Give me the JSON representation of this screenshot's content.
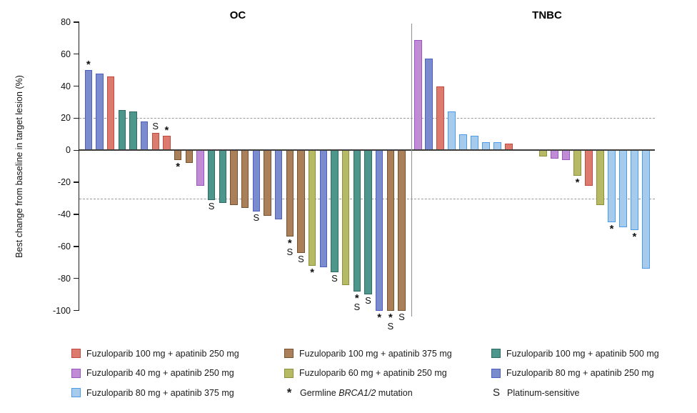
{
  "figure_title": "",
  "colors": {
    "red": {
      "fill": "#DC7A6E",
      "edge": "#C04A40"
    },
    "brown": {
      "fill": "#A9805A",
      "edge": "#77522E"
    },
    "teal": {
      "fill": "#4D968C",
      "edge": "#2F6B62"
    },
    "purple": {
      "fill": "#C08CD5",
      "edge": "#9C55C0"
    },
    "olive": {
      "fill": "#B6BA65",
      "edge": "#8C9038"
    },
    "slate": {
      "fill": "#7B8CCE",
      "edge": "#4F5FC0"
    },
    "sky": {
      "fill": "#A6CBEC",
      "edge": "#4C9BE8"
    }
  },
  "chart_data": {
    "type": "bar",
    "title": "",
    "xlabel": "",
    "ylabel": "Best change from baseline in target lesion (%)",
    "ylim": [
      -100,
      80
    ],
    "y_ticks": [
      80,
      60,
      40,
      20,
      0,
      -20,
      -40,
      -60,
      -80,
      -100
    ],
    "reference_lines": [
      20,
      -30
    ],
    "marker_meanings": {
      "*": "Germline BRCA1/2 mutation",
      "S": "Platinum-sensitive"
    },
    "panels": [
      {
        "title": "OC",
        "bars": [
          {
            "value": 50,
            "color": "slate",
            "markers": [
              "*"
            ]
          },
          {
            "value": 48,
            "color": "slate"
          },
          {
            "value": 46,
            "color": "red"
          },
          {
            "value": 25,
            "color": "teal"
          },
          {
            "value": 24,
            "color": "teal"
          },
          {
            "value": 18,
            "color": "slate"
          },
          {
            "value": 11,
            "color": "red",
            "markers": [
              "S"
            ]
          },
          {
            "value": 9,
            "color": "red",
            "markers": [
              "*"
            ]
          },
          {
            "value": -6,
            "color": "brown",
            "markers": [
              "*"
            ]
          },
          {
            "value": -8,
            "color": "brown"
          },
          {
            "value": -22,
            "color": "purple"
          },
          {
            "value": -31,
            "color": "teal",
            "markers": [
              "S"
            ]
          },
          {
            "value": -33,
            "color": "teal"
          },
          {
            "value": -34,
            "color": "brown"
          },
          {
            "value": -36,
            "color": "brown"
          },
          {
            "value": -38,
            "color": "slate",
            "markers": [
              "S"
            ]
          },
          {
            "value": -41,
            "color": "brown"
          },
          {
            "value": -43,
            "color": "slate"
          },
          {
            "value": -54,
            "color": "brown",
            "markers": [
              "*",
              "S"
            ]
          },
          {
            "value": -64,
            "color": "brown",
            "markers": [
              "S"
            ]
          },
          {
            "value": -72,
            "color": "olive",
            "markers": [
              "*"
            ]
          },
          {
            "value": -73,
            "color": "slate"
          },
          {
            "value": -76,
            "color": "teal",
            "markers": [
              "S"
            ]
          },
          {
            "value": -84,
            "color": "olive"
          },
          {
            "value": -88,
            "color": "teal",
            "markers": [
              "*",
              "S"
            ]
          },
          {
            "value": -90,
            "color": "teal",
            "markers": [
              "S"
            ]
          },
          {
            "value": -100,
            "color": "slate",
            "markers": [
              "*"
            ]
          },
          {
            "value": -100,
            "color": "brown",
            "markers": [
              "*",
              "S"
            ]
          },
          {
            "value": -100,
            "color": "brown",
            "markers": [
              "S"
            ]
          }
        ]
      },
      {
        "title": "TNBC",
        "bars": [
          {
            "value": 69,
            "color": "purple"
          },
          {
            "value": 57,
            "color": "slate"
          },
          {
            "value": 40,
            "color": "red"
          },
          {
            "value": 24,
            "color": "sky"
          },
          {
            "value": 10,
            "color": "sky"
          },
          {
            "value": 9,
            "color": "sky"
          },
          {
            "value": 5,
            "color": "sky"
          },
          {
            "value": 5,
            "color": "sky"
          },
          {
            "value": 4,
            "color": "red"
          },
          {
            "value": -4,
            "color": "olive",
            "gap_before": 2
          },
          {
            "value": -5,
            "color": "purple"
          },
          {
            "value": -6,
            "color": "purple"
          },
          {
            "value": -16,
            "color": "olive",
            "markers": [
              "*"
            ]
          },
          {
            "value": -22,
            "color": "red"
          },
          {
            "value": -34,
            "color": "olive"
          },
          {
            "value": -45,
            "color": "sky",
            "markers": [
              "*"
            ]
          },
          {
            "value": -48,
            "color": "sky"
          },
          {
            "value": -50,
            "color": "sky",
            "markers": [
              "*"
            ]
          },
          {
            "value": -74,
            "color": "sky"
          }
        ]
      }
    ]
  },
  "legend": {
    "items": [
      {
        "swatch": "red",
        "label": "Fuzuloparib 100 mg + apatinib 250 mg"
      },
      {
        "swatch": "purple",
        "label": "Fuzuloparib 40 mg + apatinib 250 mg"
      },
      {
        "swatch": "sky",
        "label": "Fuzuloparib 80 mg + apatinib 375 mg"
      },
      {
        "swatch": "brown",
        "label": "Fuzuloparib 100 mg + apatinib 375 mg"
      },
      {
        "swatch": "olive",
        "label": "Fuzuloparib 60 mg + apatinib 250 mg"
      },
      {
        "marker": "*",
        "label_prefix": "Germline ",
        "label_italic": "BRCA1/2",
        "label_suffix": " mutation"
      },
      {
        "swatch": "teal",
        "label": "Fuzuloparib 100 mg + apatinib 500 mg"
      },
      {
        "swatch": "slate",
        "label": "Fuzuloparib 80 mg + apatinib 250 mg"
      },
      {
        "marker": "S",
        "label": "Platinum-sensitive"
      }
    ]
  }
}
